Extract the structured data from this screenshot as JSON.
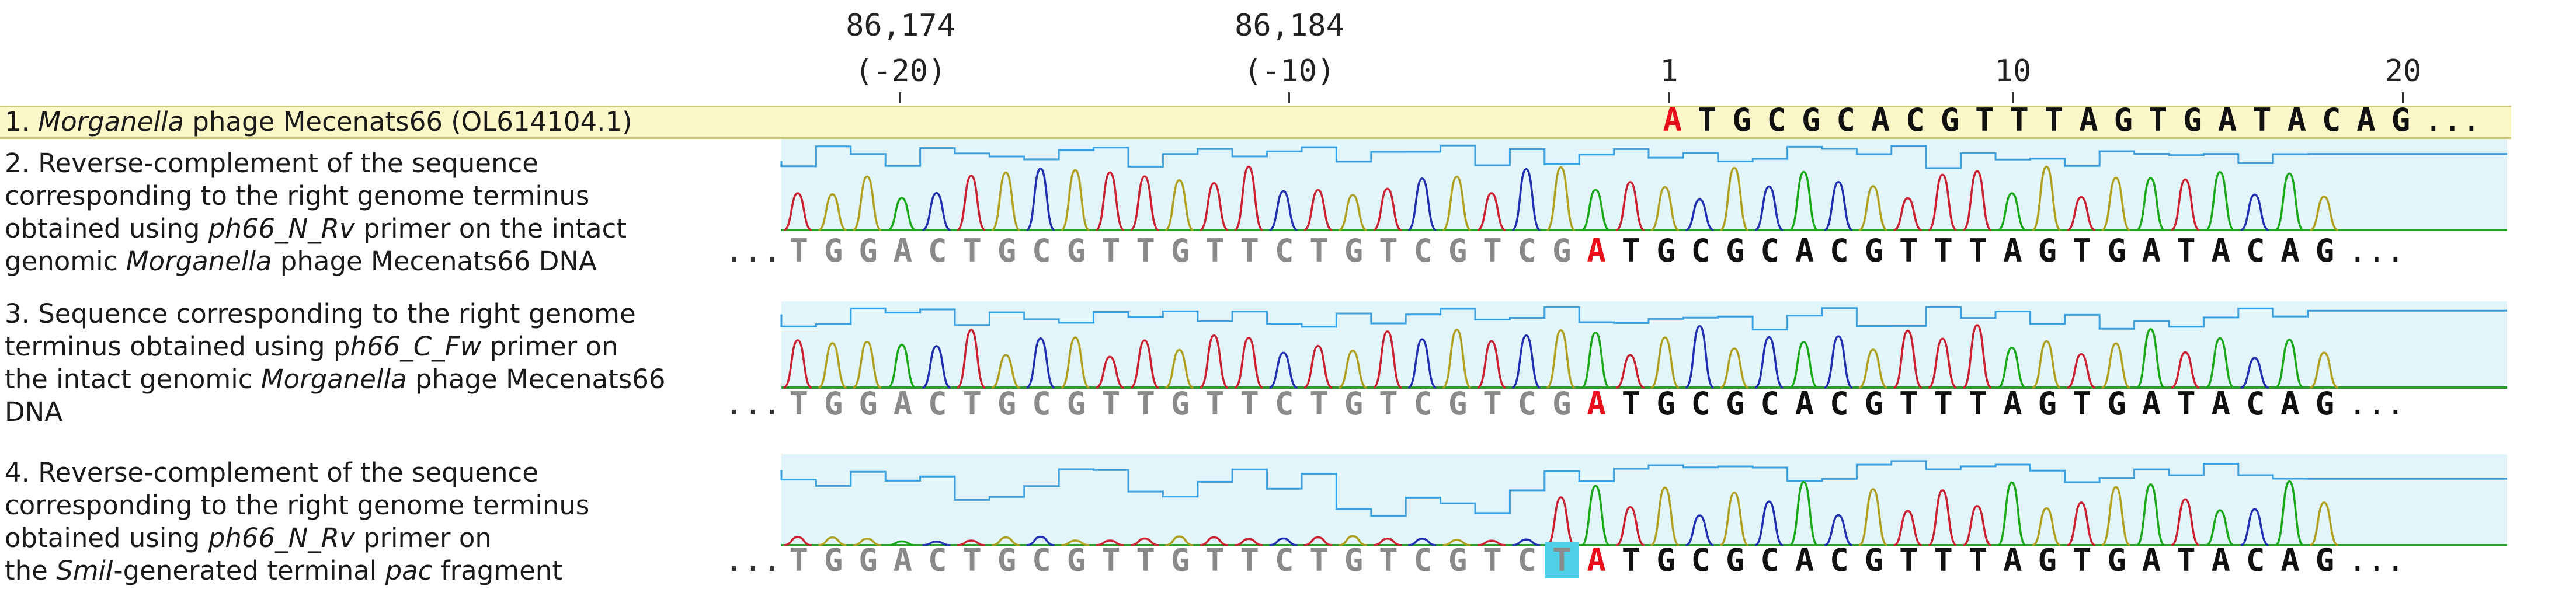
{
  "ruler": {
    "coords": [
      {
        "pos": "86,174",
        "rel": "(-20)"
      },
      {
        "pos": "86,184",
        "rel": "(-10)"
      }
    ],
    "marks": [
      "1",
      "10",
      "20"
    ]
  },
  "reference": {
    "label_parts": [
      "1. ",
      "Morganella",
      " phage Mecenats66 (OL614104.1)"
    ],
    "sequence": "ATGCGCACGTTTAGTGATACAG",
    "ellipsis": "..."
  },
  "tracks": [
    {
      "label_lines": [
        [
          "2. Reverse-complement of the sequence"
        ],
        [
          "corresponding to the right genome terminus"
        ],
        [
          "obtained using ",
          {
            "i": "ph66_N_Rv"
          },
          " primer on the intact"
        ],
        [
          "genomic ",
          {
            "i": "Morganella"
          },
          " phage Mecenats66 DNA"
        ]
      ],
      "sequence_prefix": "TGGACTGCGTTGTTCTGTCGTCG",
      "sequence_start": "A",
      "sequence_rest": "TGCGCACGTTTAGTGATACAG",
      "ellipsis_left": "...",
      "ellipsis_right": "..."
    },
    {
      "label_lines": [
        [
          "3. Sequence corresponding to the right genome"
        ],
        [
          "terminus obtained using p",
          {
            "i": "h66_C_Fw"
          },
          " primer on"
        ],
        [
          "the intact genomic ",
          {
            "i": "Morganella"
          },
          " phage Mecenats66"
        ],
        [
          "DNA"
        ]
      ],
      "sequence_prefix": "TGGACTGCGTTGTTCTGTCGTCG",
      "sequence_start": "A",
      "sequence_rest": "TGCGCACGTTTAGTGATACAG",
      "ellipsis_left": "...",
      "ellipsis_right": "..."
    },
    {
      "label_lines": [
        [
          "4. Reverse-complement of the sequence"
        ],
        [
          "corresponding to the right genome terminus"
        ],
        [
          "obtained using ",
          {
            "i": "ph66_N_Rv"
          },
          " primer on"
        ],
        [
          "the ",
          {
            "i": "SmiI"
          },
          "-generated terminal ",
          {
            "i": "pac"
          },
          " fragment"
        ]
      ],
      "sequence_prefix": "TGGACTGCGTTGTTCTGTCGTC",
      "sequence_highlight": "T",
      "sequence_start": "A",
      "sequence_rest": "TGCGCACGTTTAGTGATACAG",
      "ellipsis_left": "...",
      "ellipsis_right": "..."
    }
  ],
  "colors": {
    "A": "#18a818",
    "C": "#1f2fb0",
    "G": "#2a2a2a",
    "T": "#cc2030",
    "start_base": "#e8101a",
    "prefix_base": "#8a8a8a",
    "quality_line": "#3aa0e0",
    "panel_fill": "#e1f5fa",
    "highlight": "#4fd0e6",
    "reference_band": "#fbf7c8"
  }
}
